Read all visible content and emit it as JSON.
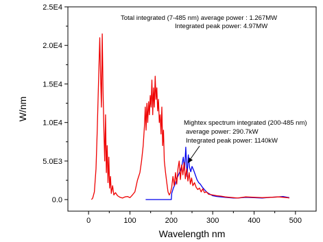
{
  "chart_data": {
    "type": "line",
    "title": "",
    "xlabel": "Wavelength nm",
    "ylabel": "W/nm",
    "xlim": [
      -50,
      550
    ],
    "ylim": [
      -1500,
      25000
    ],
    "x_ticks": [
      0,
      100,
      200,
      300,
      400,
      500
    ],
    "x_tick_labels": [
      "0",
      "100",
      "200",
      "300",
      "400",
      "500"
    ],
    "y_ticks": [
      0,
      5000,
      10000,
      15000,
      20000,
      25000
    ],
    "y_tick_labels": [
      "0.0",
      "5.0E3",
      "1.0E4",
      "1.5E4",
      "2.0E4",
      "2.5E4"
    ],
    "grid": false,
    "legend": "none",
    "annotations": {
      "total_line1": "Total integrated (7-485 nm) average power : 1.267MW",
      "total_line2": "Integrated peak power: 4.97MW",
      "mightex_line1": "Mightex spectrum integrated (200-485 nm)",
      "mightex_line2": "average power:  290.7kW",
      "mightex_line3": "Integrated peak power: 1140kW"
    },
    "series": [
      {
        "color": "#0000ee",
        "x": [
          138,
          190,
          200,
          201,
          205,
          210,
          214,
          218,
          222,
          226,
          229,
          232,
          235,
          238,
          241,
          244,
          247,
          250,
          254,
          258,
          262,
          266,
          270,
          275,
          280,
          285,
          290,
          300,
          310,
          320,
          330,
          340,
          350,
          360,
          380,
          400,
          420,
          440,
          460,
          470,
          480,
          485
        ],
        "y": [
          0,
          0,
          0,
          800,
          1500,
          2100,
          2800,
          3300,
          3800,
          4500,
          5500,
          3800,
          6800,
          3000,
          5800,
          4200,
          3600,
          4300,
          3800,
          3200,
          2600,
          2200,
          2000,
          1600,
          1300,
          1000,
          800,
          500,
          400,
          350,
          300,
          250,
          200,
          200,
          300,
          250,
          200,
          300,
          350,
          400,
          300,
          250
        ]
      },
      {
        "color": "#ee0000",
        "x": [
          7,
          10,
          14,
          18,
          21,
          24,
          27,
          29,
          31,
          33,
          35,
          37,
          39,
          41,
          43,
          45,
          47,
          49,
          51,
          53,
          55,
          58,
          61,
          65,
          70,
          76,
          82,
          88,
          94,
          100,
          106,
          112,
          118,
          124,
          128,
          132,
          135,
          137,
          139,
          141,
          143,
          145,
          147,
          149,
          151,
          153,
          155,
          157,
          159,
          161,
          163,
          165,
          167,
          169,
          171,
          173,
          175,
          177,
          179,
          181,
          183,
          186,
          189,
          192,
          195,
          198,
          201,
          204,
          207,
          210,
          213,
          216,
          219,
          222,
          225,
          228,
          231,
          234,
          237,
          240,
          243,
          246,
          249,
          252,
          256,
          260,
          264,
          268,
          272,
          276,
          280,
          285,
          290,
          300,
          310,
          320,
          330,
          340,
          350,
          360,
          380,
          400,
          420,
          440,
          460,
          480,
          485
        ],
        "y": [
          0,
          200,
          1000,
          4000,
          9000,
          15000,
          21000,
          16000,
          12000,
          21500,
          14000,
          9000,
          5000,
          11000,
          3500,
          7000,
          2200,
          5500,
          1500,
          3000,
          800,
          1800,
          600,
          900,
          500,
          300,
          200,
          350,
          400,
          250,
          600,
          1000,
          2500,
          3500,
          5000,
          7000,
          9500,
          12000,
          9000,
          12500,
          10000,
          12700,
          11000,
          13500,
          12000,
          15500,
          11000,
          14500,
          12000,
          16000,
          13000,
          14500,
          11500,
          13000,
          10000,
          11000,
          8500,
          12000,
          7000,
          9000,
          5000,
          3500,
          2200,
          1000,
          600,
          900,
          1600,
          3000,
          1800,
          3500,
          2000,
          4000,
          5000,
          2600,
          4500,
          3200,
          4800,
          2700,
          4000,
          2400,
          3500,
          2000,
          2800,
          1800,
          2200,
          1600,
          1300,
          1500,
          1000,
          1400,
          900,
          1000,
          700,
          600,
          500,
          450,
          350,
          300,
          250,
          200,
          350,
          300,
          250,
          300,
          350,
          250,
          200
        ]
      }
    ]
  }
}
